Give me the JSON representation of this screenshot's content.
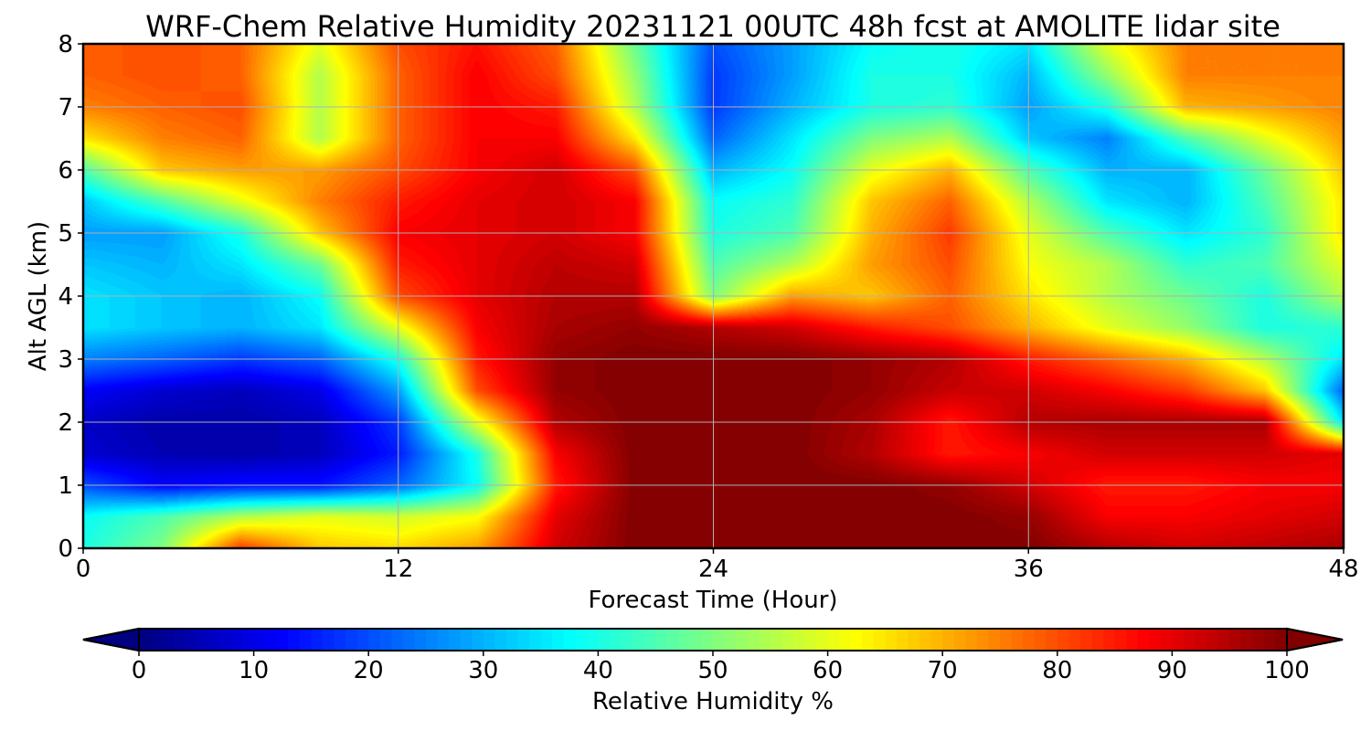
{
  "chart_data": {
    "type": "heatmap",
    "title": "WRF-Chem Relative Humidity 20231121 00UTC 48h fcst at AMOLITE lidar site",
    "xlabel": "Forecast Time (Hour)",
    "ylabel": "Alt AGL (km)",
    "xlim": [
      0,
      48
    ],
    "ylim": [
      0,
      8
    ],
    "xticks": [
      0,
      12,
      24,
      36,
      48
    ],
    "yticks": [
      0,
      1,
      2,
      3,
      4,
      5,
      6,
      7,
      8
    ],
    "grid": true,
    "x": [
      0,
      3,
      6,
      9,
      12,
      15,
      18,
      21,
      24,
      27,
      30,
      33,
      36,
      39,
      42,
      45,
      48
    ],
    "y": [
      0,
      0.5,
      1,
      1.5,
      2,
      2.5,
      3,
      3.5,
      4,
      4.5,
      5,
      5.5,
      6,
      6.5,
      7,
      7.5,
      8
    ],
    "z": [
      [
        40,
        50,
        82,
        68,
        66,
        72,
        92,
        100,
        100,
        100,
        100,
        100,
        100,
        95,
        92,
        94,
        96
      ],
      [
        38,
        45,
        55,
        60,
        58,
        62,
        90,
        100,
        100,
        100,
        100,
        100,
        98,
        88,
        88,
        90,
        92
      ],
      [
        20,
        12,
        14,
        14,
        22,
        38,
        85,
        100,
        100,
        100,
        100,
        98,
        92,
        85,
        85,
        88,
        88
      ],
      [
        8,
        5,
        4,
        6,
        15,
        40,
        88,
        100,
        100,
        100,
        95,
        85,
        88,
        92,
        92,
        92,
        90
      ],
      [
        7,
        4,
        4,
        6,
        18,
        60,
        95,
        100,
        100,
        100,
        96,
        85,
        95,
        96,
        96,
        96,
        35
      ],
      [
        12,
        8,
        6,
        10,
        28,
        80,
        98,
        100,
        100,
        100,
        98,
        93,
        92,
        88,
        82,
        68,
        22
      ],
      [
        25,
        22,
        18,
        22,
        40,
        85,
        98,
        100,
        100,
        100,
        98,
        95,
        85,
        78,
        70,
        55,
        35
      ],
      [
        35,
        32,
        30,
        35,
        60,
        88,
        96,
        98,
        95,
        92,
        85,
        80,
        70,
        60,
        52,
        40,
        42
      ],
      [
        35,
        32,
        30,
        38,
        80,
        90,
        95,
        95,
        50,
        72,
        68,
        78,
        65,
        55,
        48,
        40,
        55
      ],
      [
        32,
        30,
        35,
        48,
        85,
        90,
        94,
        92,
        45,
        55,
        72,
        80,
        62,
        55,
        42,
        45,
        60
      ],
      [
        28,
        28,
        40,
        68,
        88,
        90,
        92,
        88,
        40,
        45,
        70,
        82,
        60,
        45,
        35,
        42,
        65
      ],
      [
        32,
        45,
        60,
        75,
        85,
        90,
        92,
        88,
        38,
        42,
        68,
        78,
        55,
        35,
        30,
        45,
        65
      ],
      [
        45,
        68,
        72,
        72,
        80,
        88,
        92,
        80,
        30,
        38,
        60,
        70,
        45,
        30,
        30,
        48,
        68
      ],
      [
        65,
        75,
        78,
        55,
        78,
        88,
        88,
        65,
        22,
        35,
        50,
        55,
        32,
        25,
        45,
        60,
        72
      ],
      [
        75,
        78,
        80,
        55,
        78,
        88,
        85,
        55,
        18,
        30,
        40,
        42,
        28,
        40,
        70,
        72,
        75
      ],
      [
        78,
        80,
        78,
        55,
        78,
        88,
        80,
        52,
        18,
        28,
        40,
        40,
        30,
        52,
        75,
        75,
        75
      ],
      [
        78,
        80,
        78,
        60,
        80,
        86,
        78,
        48,
        20,
        28,
        38,
        40,
        35,
        60,
        75,
        75,
        75
      ]
    ],
    "colorbar": {
      "label": "Relative Humidity %",
      "min": 0,
      "max": 100,
      "ticks": [
        0,
        10,
        20,
        30,
        40,
        50,
        60,
        70,
        80,
        90,
        100
      ],
      "colormap": "jet",
      "extend": "both"
    }
  }
}
